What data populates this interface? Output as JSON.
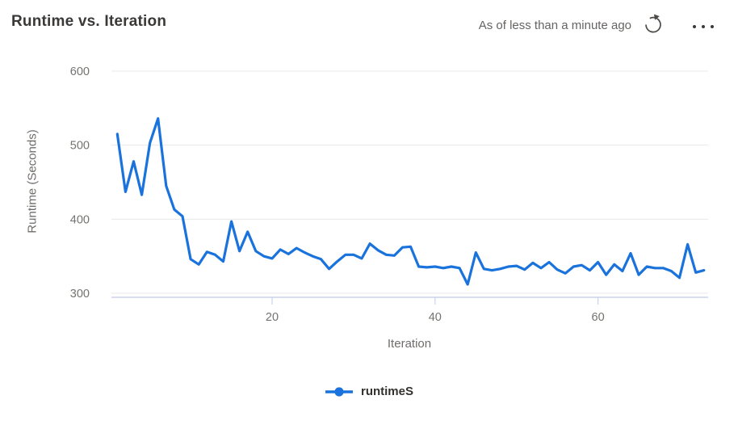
{
  "header": {
    "title": "Runtime vs. Iteration",
    "freshness": "As of less than a minute ago",
    "refresh_icon": "refresh-icon",
    "more_icon": "ellipsis-icon"
  },
  "colors": {
    "series_blue": "#1a73dc",
    "grid": "#e8e8e8",
    "axis": "#c8d4ec",
    "tick_text": "#757370",
    "title_text": "#3a3938",
    "muted_text": "#666462"
  },
  "chart_data": {
    "type": "line",
    "title": "Runtime vs. Iteration",
    "xlabel": "Iteration",
    "ylabel": "Runtime (Seconds)",
    "x_ticks": [
      20,
      40,
      60
    ],
    "y_ticks": [
      300,
      400,
      500,
      600
    ],
    "xlim": [
      1,
      74
    ],
    "ylim": [
      294,
      600
    ],
    "grid": "horizontal",
    "legend_position": "bottom",
    "series": [
      {
        "name": "runtimeS",
        "color": "#1a73dc",
        "x": [
          1,
          2,
          3,
          4,
          5,
          6,
          7,
          8,
          9,
          10,
          11,
          12,
          13,
          14,
          15,
          16,
          17,
          18,
          19,
          20,
          21,
          22,
          23,
          24,
          25,
          26,
          27,
          28,
          29,
          30,
          31,
          32,
          33,
          34,
          35,
          36,
          37,
          38,
          39,
          40,
          41,
          42,
          43,
          44,
          45,
          46,
          47,
          48,
          49,
          50,
          51,
          52,
          53,
          54,
          55,
          56,
          57,
          58,
          59,
          60,
          61,
          62,
          63,
          64,
          65,
          66,
          67,
          68,
          69,
          70,
          71,
          72,
          73
        ],
        "values": [
          515,
          437,
          478,
          433,
          503,
          536,
          445,
          413,
          404,
          346,
          339,
          356,
          352,
          343,
          397,
          357,
          383,
          357,
          350,
          347,
          359,
          353,
          361,
          355,
          350,
          346,
          333,
          343,
          352,
          352,
          347,
          367,
          358,
          352,
          351,
          362,
          363,
          336,
          335,
          336,
          334,
          336,
          334,
          312,
          355,
          333,
          331,
          333,
          336,
          337,
          332,
          341,
          334,
          342,
          332,
          327,
          336,
          338,
          331,
          342,
          325,
          339,
          330,
          354,
          325,
          336,
          334,
          334,
          330,
          321,
          366,
          328,
          331
        ]
      }
    ]
  }
}
